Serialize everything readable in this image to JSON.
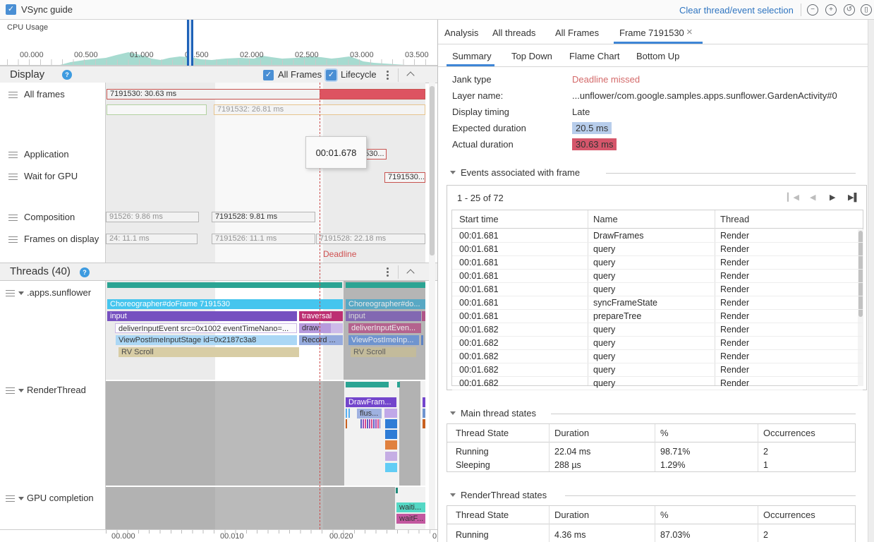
{
  "titlebar": {
    "vsync_label": "VSync guide",
    "clear_selection": "Clear thread/event selection",
    "zoom_out_glyph": "−",
    "zoom_in_glyph": "+",
    "reset_zoom_glyph": "↺",
    "zoom_selection_glyph": "[]"
  },
  "minimap": {
    "cpu_label": "CPU Usage",
    "ticks": [
      "00.000",
      "00.500",
      "01.000",
      "01.500",
      "02.000",
      "02.500",
      "03.000",
      "03.500"
    ],
    "area_color": "#a7dbd0",
    "points": [
      [
        85,
        0
      ],
      [
        100,
        4
      ],
      [
        120,
        7
      ],
      [
        150,
        10
      ],
      [
        165,
        14
      ],
      [
        182,
        18
      ],
      [
        200,
        14
      ],
      [
        215,
        9
      ],
      [
        228,
        7
      ],
      [
        240,
        10
      ],
      [
        255,
        12
      ],
      [
        270,
        11
      ],
      [
        285,
        8
      ],
      [
        300,
        7
      ],
      [
        320,
        9
      ],
      [
        340,
        10
      ],
      [
        360,
        9
      ],
      [
        372,
        13
      ],
      [
        385,
        11
      ],
      [
        400,
        9
      ],
      [
        420,
        10
      ],
      [
        440,
        12
      ],
      [
        455,
        11
      ],
      [
        470,
        9
      ],
      [
        480,
        10
      ],
      [
        495,
        12
      ],
      [
        505,
        9
      ],
      [
        515,
        5
      ],
      [
        530,
        3
      ],
      [
        545,
        2
      ],
      [
        560,
        1
      ],
      [
        575,
        0
      ]
    ]
  },
  "display": {
    "title": "Display",
    "all_frames_label": "All Frames",
    "lifecycle_label": "Lifecycle",
    "rows": {
      "all_frames": "All frames",
      "application": "Application",
      "wait_gpu": "Wait for GPU",
      "composition": "Composition",
      "frames_on_display": "Frames on display"
    },
    "bars": {
      "frame_main": "7191530: 30.63 ms",
      "frame_next": "7191532: 26.81 ms",
      "app_frame": "530...",
      "gpu_frame": "7191530...",
      "comp_1": "91526: 9.86 ms",
      "comp_2": "7191528: 9.81 ms",
      "fod_1": "24: 11.1 ms",
      "fod_2": "7191526: 11.1 ms",
      "fod_3": "7191528: 22.18 ms"
    },
    "deadline_label": "Deadline",
    "tooltip": "00:01.678"
  },
  "threads": {
    "title": "Threads (40)",
    "sunflower": {
      "label": ".apps.sunflower",
      "bars": {
        "choreographer": "Choreographer#doFrame 7191530",
        "input": "input",
        "traversal": "traversal",
        "deliver": "deliverInputEvent src=0x1002 eventTimeNano=...",
        "draw": "draw",
        "viewpostime": "ViewPostImeInputStage id=0x2187c3a8",
        "record": "Record ...",
        "rvscroll": "RV Scroll"
      },
      "dim_bars": {
        "choreographer": "Choreographer#do...",
        "input": "input",
        "deliver": "deliverInputEven...",
        "viewpostime": "ViewPostImeInp...",
        "rvscroll": "RV Scroll"
      }
    },
    "render_thread": {
      "label": "RenderThread",
      "bars": {
        "drawframes": "DrawFram...",
        "flush": "flus..."
      }
    },
    "gpu": {
      "label": "GPU completion",
      "bars": {
        "waiting": "waiti...",
        "waitfence": "waitF..."
      }
    }
  },
  "axis": {
    "t0": "00.000",
    "t1": "00.010",
    "t2": "00.020",
    "t3": "0"
  },
  "panel": {
    "analysis_label": "Analysis",
    "tabs": {
      "all_threads": "All threads",
      "all_frames": "All Frames",
      "frame": "Frame 7191530",
      "close_glyph": "×"
    },
    "subtabs": {
      "summary": "Summary",
      "top_down": "Top Down",
      "flame": "Flame Chart",
      "bottom_up": "Bottom Up"
    },
    "summary": {
      "jank_label": "Jank type",
      "jank_value": "Deadline missed",
      "layer_label": "Layer name:",
      "layer_value": "...unflower/com.google.samples.apps.sunflower.GardenActivity#0",
      "timing_label": "Display timing",
      "timing_value": "Late",
      "expected_label": "Expected duration",
      "expected_value": "20.5 ms",
      "actual_label": "Actual duration",
      "actual_value": "30.63 ms"
    },
    "events": {
      "section_title": "Events associated with frame",
      "pagination": "1 - 25 of 72",
      "columns": {
        "start": "Start time",
        "name": "Name",
        "thread": "Thread"
      },
      "rows": [
        {
          "start": "00:01.681",
          "name": "DrawFrames",
          "thread": "Render"
        },
        {
          "start": "00:01.681",
          "name": "query",
          "thread": "Render"
        },
        {
          "start": "00:01.681",
          "name": "query",
          "thread": "Render"
        },
        {
          "start": "00:01.681",
          "name": "query",
          "thread": "Render"
        },
        {
          "start": "00:01.681",
          "name": "query",
          "thread": "Render"
        },
        {
          "start": "00:01.681",
          "name": "syncFrameState",
          "thread": "Render"
        },
        {
          "start": "00:01.681",
          "name": "prepareTree",
          "thread": "Render"
        },
        {
          "start": "00:01.682",
          "name": "query",
          "thread": "Render"
        },
        {
          "start": "00:01.682",
          "name": "query",
          "thread": "Render"
        },
        {
          "start": "00:01.682",
          "name": "query",
          "thread": "Render"
        },
        {
          "start": "00:01.682",
          "name": "query",
          "thread": "Render"
        },
        {
          "start": "00:01.682",
          "name": "query",
          "thread": "Render"
        }
      ]
    },
    "main_states": {
      "section_title": "Main thread states",
      "columns": {
        "state": "Thread State",
        "duration": "Duration",
        "pct": "%",
        "occ": "Occurrences"
      },
      "rows": [
        {
          "state": "Running",
          "duration": "22.04 ms",
          "pct": "98.71%",
          "occ": "2"
        },
        {
          "state": "Sleeping",
          "duration": "288 µs",
          "pct": "1.29%",
          "occ": "1"
        }
      ]
    },
    "render_states": {
      "section_title": "RenderThread states",
      "columns": {
        "state": "Thread State",
        "duration": "Duration",
        "pct": "%",
        "occ": "Occurrences"
      },
      "rows": [
        {
          "state": "Running",
          "duration": "4.36 ms",
          "pct": "87.03%",
          "occ": "2"
        }
      ]
    }
  },
  "colors": {
    "accent_blue": "#3e86d6",
    "jank_red": "#dd5361",
    "expected_blue": "#b7cdeb",
    "thread_running_teal": "#2ba493",
    "link_blue": "#2e74c0",
    "deadline_red": "#cc4b4b"
  }
}
